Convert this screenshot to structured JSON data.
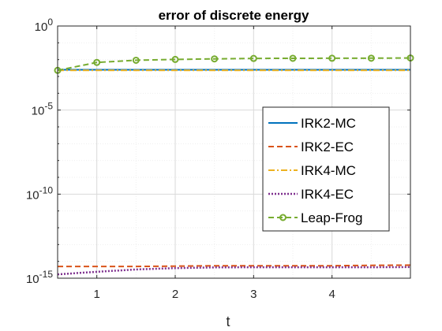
{
  "chart_data": {
    "type": "line",
    "title": "error of discrete energy",
    "xlabel": "t",
    "ylabel": "",
    "xlim": [
      0.5,
      5.0
    ],
    "ylim_log10": [
      -15,
      0
    ],
    "yscale": "log",
    "grid": true,
    "legend_position": "right",
    "x_ticks": [
      1,
      2,
      3,
      4
    ],
    "y_ticks": [
      {
        "base": "10",
        "exp": "0",
        "log10": 0
      },
      {
        "base": "10",
        "exp": "-5",
        "log10": -5
      },
      {
        "base": "10",
        "exp": "-10",
        "log10": -10
      },
      {
        "base": "10",
        "exp": "-15",
        "log10": -15
      }
    ],
    "series": [
      {
        "name": "IRK2-MC",
        "color": "#0072BD",
        "style": "solid",
        "x": [
          0.5,
          1.0,
          1.5,
          2.0,
          2.5,
          3.0,
          3.5,
          4.0,
          4.5,
          5.0
        ],
        "y": [
          0.0025,
          0.0025,
          0.0025,
          0.0025,
          0.0025,
          0.0025,
          0.0025,
          0.0025,
          0.0025,
          0.0025
        ]
      },
      {
        "name": "IRK2-EC",
        "color": "#D95319",
        "style": "dashed",
        "x": [
          0.5,
          1.0,
          1.5,
          2.0,
          2.5,
          3.0,
          3.5,
          4.0,
          4.5,
          5.0
        ],
        "y": [
          5e-15,
          5e-15,
          5e-15,
          5.2e-15,
          5.5e-15,
          5.5e-15,
          5.5e-15,
          5.5e-15,
          5.8e-15,
          6e-15
        ]
      },
      {
        "name": "IRK4-MC",
        "color": "#EDB120",
        "style": "dashdot",
        "x": [
          0.5,
          1.0,
          1.5,
          2.0,
          2.5,
          3.0,
          3.5,
          4.0,
          4.5,
          5.0
        ],
        "y": [
          0.0023,
          0.0023,
          0.0023,
          0.0023,
          0.0023,
          0.0023,
          0.0023,
          0.0023,
          0.0023,
          0.0023
        ]
      },
      {
        "name": "IRK4-EC",
        "color": "#7E2F8E",
        "style": "dotted",
        "x": [
          0.5,
          1.0,
          1.5,
          2.0,
          2.5,
          3.0,
          3.5,
          4.0,
          4.5,
          5.0
        ],
        "y": [
          1.7e-15,
          2.4e-15,
          3.3e-15,
          4e-15,
          4.4e-15,
          4.5e-15,
          4.5e-15,
          4.5e-15,
          4.5e-15,
          4.6e-15
        ]
      },
      {
        "name": "Leap-Frog",
        "color": "#77AC30",
        "style": "dashed",
        "marker": "circle",
        "x": [
          0.5,
          1.0,
          1.5,
          2.0,
          2.5,
          3.0,
          3.5,
          4.0,
          4.5,
          5.0
        ],
        "y": [
          0.0023,
          0.0068,
          0.0092,
          0.0103,
          0.0111,
          0.0118,
          0.012,
          0.0121,
          0.0122,
          0.0125
        ]
      }
    ]
  }
}
